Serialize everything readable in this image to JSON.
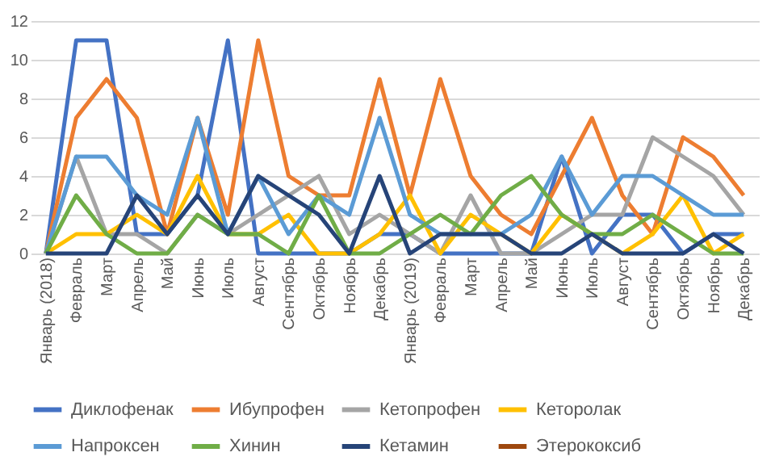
{
  "chart_data": {
    "type": "line",
    "categories": [
      "Январь (2018)",
      "Февраль",
      "Март",
      "Апрель",
      "Май",
      "Июнь",
      "Июль",
      "Август",
      "Сентябрь",
      "Октябрь",
      "Ноябрь",
      "Декабрь",
      "Январь (2019)",
      "Февраль",
      "Март",
      "Апрель",
      "Май",
      "Июнь",
      "Июль",
      "Август",
      "Сентябрь",
      "Октябрь",
      "Ноябрь",
      "Декабрь"
    ],
    "series": [
      {
        "name": "Диклофенак",
        "color": "#4472c4",
        "values": [
          0,
          11,
          11,
          1,
          1,
          3,
          11,
          0,
          0,
          0,
          0,
          1,
          1,
          0,
          0,
          0,
          0,
          5,
          0,
          2,
          2,
          0,
          1,
          1
        ]
      },
      {
        "name": "Ибупрофен",
        "color": "#ed7d31",
        "values": [
          0,
          7,
          9,
          7,
          1,
          7,
          2,
          11,
          4,
          3,
          3,
          9,
          3,
          9,
          4,
          2,
          1,
          4,
          7,
          3,
          1,
          6,
          5,
          3
        ]
      },
      {
        "name": "Кетопрофен",
        "color": "#a5a5a5",
        "values": [
          0,
          5,
          1,
          1,
          0,
          2,
          1,
          2,
          3,
          4,
          1,
          2,
          1,
          0,
          3,
          0,
          0,
          1,
          2,
          2,
          6,
          5,
          4,
          2
        ]
      },
      {
        "name": "Кеторолак",
        "color": "#ffc000",
        "values": [
          0,
          1,
          1,
          2,
          1,
          4,
          1,
          1,
          2,
          0,
          0,
          1,
          3,
          0,
          2,
          1,
          0,
          2,
          1,
          0,
          1,
          3,
          0,
          1
        ]
      },
      {
        "name": "Напроксен",
        "color": "#5b9bd5",
        "values": [
          0,
          5,
          5,
          3,
          2,
          7,
          1,
          4,
          1,
          3,
          2,
          7,
          2,
          1,
          1,
          1,
          2,
          5,
          2,
          4,
          4,
          3,
          2,
          2
        ]
      },
      {
        "name": "Хинин",
        "color": "#70ad47",
        "values": [
          0,
          3,
          1,
          0,
          0,
          2,
          1,
          1,
          0,
          3,
          0,
          0,
          1,
          2,
          1,
          3,
          4,
          2,
          1,
          1,
          2,
          1,
          0,
          0
        ]
      },
      {
        "name": "Кетамин",
        "color": "#264478",
        "values": [
          0,
          0,
          0,
          3,
          1,
          3,
          1,
          4,
          3,
          2,
          0,
          4,
          0,
          1,
          1,
          1,
          0,
          0,
          1,
          0,
          0,
          0,
          1,
          0
        ]
      },
      {
        "name": "Этерококсиб",
        "color": "#9e480e",
        "values": [
          null,
          null,
          null,
          null,
          null,
          null,
          null,
          null,
          null,
          null,
          null,
          null,
          null,
          null,
          null,
          null,
          null,
          null,
          null,
          null,
          null,
          null,
          null,
          null
        ]
      }
    ],
    "ylim": [
      0,
      12
    ],
    "yticks": [
      0,
      2,
      4,
      6,
      8,
      10,
      12
    ],
    "grid": "y",
    "legend": "bottom",
    "marker": "none",
    "line_style": "solid"
  }
}
